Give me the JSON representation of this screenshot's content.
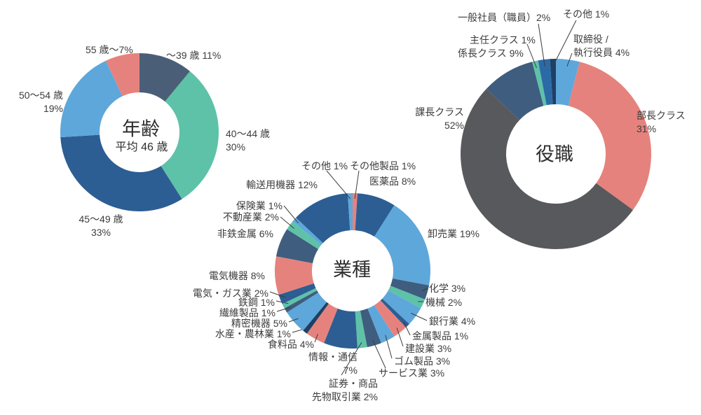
{
  "background": "#ffffff",
  "text_color": "#3d3d3d",
  "palette": {
    "light_blue": "#5ea7db",
    "teal": "#5ec2a8",
    "dark_blue": "#2c5e93",
    "salmon": "#e6827d",
    "slate": "#3f5d7e",
    "gray_blue": "#4a5f77",
    "navy": "#1e4066",
    "medium_blue": "#2b6aa7",
    "gray": "#58595c"
  },
  "chart_data": [
    {
      "id": "age",
      "type": "donut",
      "title": "年齢",
      "center_lines": [
        "年齢",
        "平均 46 歳"
      ],
      "legend_position": "around",
      "slices": [
        {
          "label_lines": [
            "～39 歳 11%"
          ],
          "value": 11,
          "color": "gray_blue"
        },
        {
          "label_lines": [
            "40～44 歳",
            "30%"
          ],
          "value": 30,
          "color": "teal"
        },
        {
          "label_lines": [
            "45～49 歳",
            "33%"
          ],
          "value": 33,
          "color": "dark_blue"
        },
        {
          "label_lines": [
            "50～54 歳",
            "19%"
          ],
          "value": 19,
          "color": "light_blue"
        },
        {
          "label_lines": [
            "55 歳～7%"
          ],
          "value": 7,
          "color": "salmon"
        }
      ]
    },
    {
      "id": "position",
      "type": "donut",
      "title": "役職",
      "center_lines": [
        "役職"
      ],
      "legend_position": "around",
      "slices": [
        {
          "label_lines": [
            "取締役 /",
            "執行役員 4%"
          ],
          "value": 4,
          "color": "light_blue"
        },
        {
          "label_lines": [
            "部長クラス",
            "31%"
          ],
          "value": 31,
          "color": "salmon"
        },
        {
          "label_lines": [
            "課長クラス",
            "52%"
          ],
          "value": 52,
          "color": "gray"
        },
        {
          "label_lines": [
            "係長クラス 9%"
          ],
          "value": 9,
          "color": "slate"
        },
        {
          "label_lines": [
            "主任クラス 1%"
          ],
          "value": 1,
          "color": "teal"
        },
        {
          "label_lines": [
            "一般社員（職員）2%"
          ],
          "value": 2,
          "color": "medium_blue"
        },
        {
          "label_lines": [
            "その他 1%"
          ],
          "value": 1,
          "color": "navy"
        }
      ]
    },
    {
      "id": "industry",
      "type": "donut",
      "title": "業種",
      "center_lines": [
        "業種"
      ],
      "legend_position": "around",
      "slices": [
        {
          "label_lines": [
            "その他製品 1%"
          ],
          "value": 1,
          "color": "salmon"
        },
        {
          "label_lines": [
            "医薬品 8%"
          ],
          "value": 8,
          "color": "dark_blue"
        },
        {
          "label_lines": [
            "卸売業 19%"
          ],
          "value": 19,
          "color": "light_blue"
        },
        {
          "label_lines": [
            "化学 3%"
          ],
          "value": 3,
          "color": "slate"
        },
        {
          "label_lines": [
            "機械 2%"
          ],
          "value": 2,
          "color": "teal"
        },
        {
          "label_lines": [
            "銀行業 4%"
          ],
          "value": 4,
          "color": "light_blue"
        },
        {
          "label_lines": [
            "金属製品 1%"
          ],
          "value": 1,
          "color": "dark_blue"
        },
        {
          "label_lines": [
            "建設業 3%"
          ],
          "value": 3,
          "color": "salmon"
        },
        {
          "label_lines": [
            "ゴム製品 3%"
          ],
          "value": 3,
          "color": "light_blue"
        },
        {
          "label_lines": [
            "サービス業 3%"
          ],
          "value": 3,
          "color": "slate"
        },
        {
          "label_lines": [
            "証券・商品",
            "先物取引業 2%"
          ],
          "value": 2,
          "color": "teal"
        },
        {
          "label_lines": [
            "情報・通信",
            "7%"
          ],
          "value": 7,
          "color": "dark_blue"
        },
        {
          "label_lines": [
            "食料品 4%"
          ],
          "value": 4,
          "color": "salmon"
        },
        {
          "label_lines": [
            "水産・農林業 1%"
          ],
          "value": 1,
          "color": "navy"
        },
        {
          "label_lines": [
            "精密機器 5%"
          ],
          "value": 5,
          "color": "light_blue"
        },
        {
          "label_lines": [
            "繊維製品 1%"
          ],
          "value": 1,
          "color": "slate"
        },
        {
          "label_lines": [
            "鉄鋼 1%"
          ],
          "value": 1,
          "color": "teal"
        },
        {
          "label_lines": [
            "電気・ガス業 2%"
          ],
          "value": 2,
          "color": "dark_blue"
        },
        {
          "label_lines": [
            "電気機器 8%"
          ],
          "value": 8,
          "color": "salmon"
        },
        {
          "label_lines": [
            "非鉄金属 6%"
          ],
          "value": 6,
          "color": "slate"
        },
        {
          "label_lines": [
            "不動産業 2%"
          ],
          "value": 2,
          "color": "teal"
        },
        {
          "label_lines": [
            "保険業 1%"
          ],
          "value": 1,
          "color": "light_blue"
        },
        {
          "label_lines": [
            "輸送用機器 12%"
          ],
          "value": 12,
          "color": "dark_blue"
        },
        {
          "label_lines": [
            "その他 1%"
          ],
          "value": 1,
          "color": "light_blue"
        }
      ]
    }
  ]
}
